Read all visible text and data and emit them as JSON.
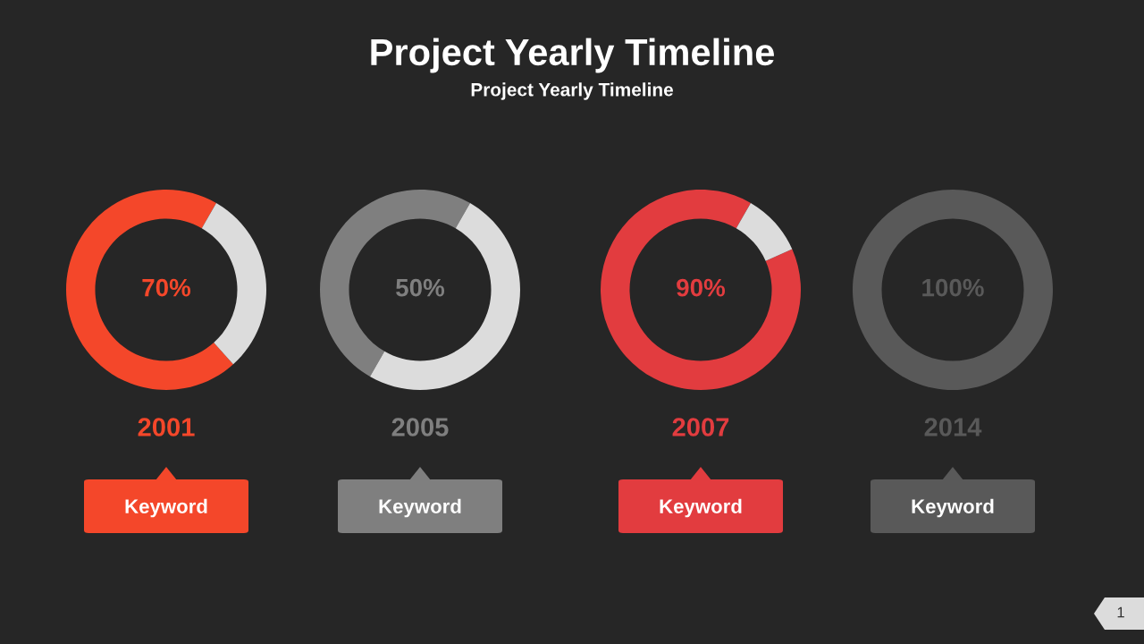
{
  "chart_data": [
    {
      "type": "other",
      "title": "Project Yearly Timeline",
      "subtitle": "Project Yearly Timeline",
      "annotations": [
        "1"
      ]
    },
    {
      "type": "donut",
      "title": "2001",
      "categories": [
        null,
        null
      ],
      "values": [
        70,
        30
      ],
      "colors": [
        "#f4472a",
        "#dcdcdc"
      ],
      "value_labels": [
        "70%",
        null
      ],
      "annotations": [
        "Keyword"
      ]
    },
    {
      "type": "donut",
      "title": "2005",
      "categories": [
        null,
        null
      ],
      "values": [
        50,
        50
      ],
      "colors": [
        "#7f7f7f",
        "#dcdcdc"
      ],
      "value_labels": [
        "50%",
        null
      ],
      "annotations": [
        "Keyword"
      ]
    },
    {
      "type": "donut",
      "title": "2007",
      "categories": [
        null,
        null
      ],
      "values": [
        90,
        10
      ],
      "colors": [
        "#e23c3f",
        "#dcdcdc"
      ],
      "value_labels": [
        "90%",
        null
      ],
      "annotations": [
        "Keyword"
      ]
    },
    {
      "type": "pie",
      "title": "2014",
      "categories": [
        null
      ],
      "values": [
        100
      ],
      "colors": [
        "#595959"
      ],
      "value_labels": [
        "100%"
      ],
      "annotations": [
        "Keyword"
      ]
    }
  ]
}
